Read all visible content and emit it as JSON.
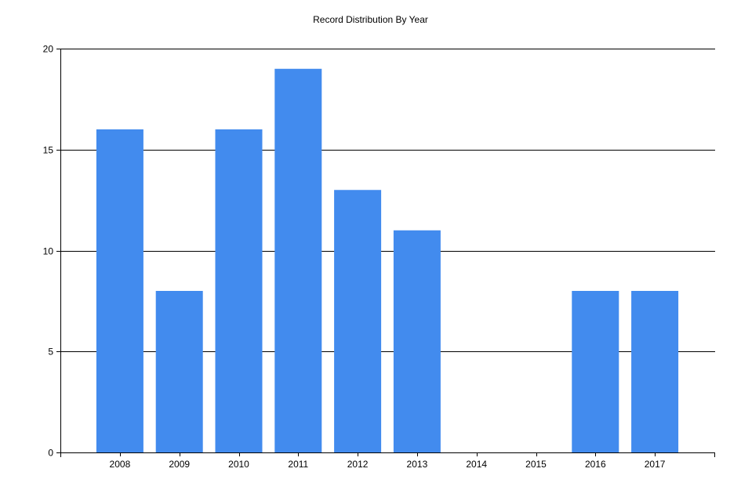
{
  "chart_data": {
    "type": "bar",
    "title": "Record Distribution By Year",
    "xlabel": "",
    "ylabel": "",
    "categories": [
      "2008",
      "2009",
      "2010",
      "2011",
      "2012",
      "2013",
      "2014",
      "2015",
      "2016",
      "2017"
    ],
    "values": [
      16,
      8,
      16,
      19,
      13,
      11,
      0,
      0,
      8,
      8
    ],
    "ylim": [
      0,
      20
    ],
    "yticks": [
      0,
      5,
      10,
      15,
      20
    ],
    "grid": true,
    "bar_color": "#428bee",
    "legend": "none"
  }
}
